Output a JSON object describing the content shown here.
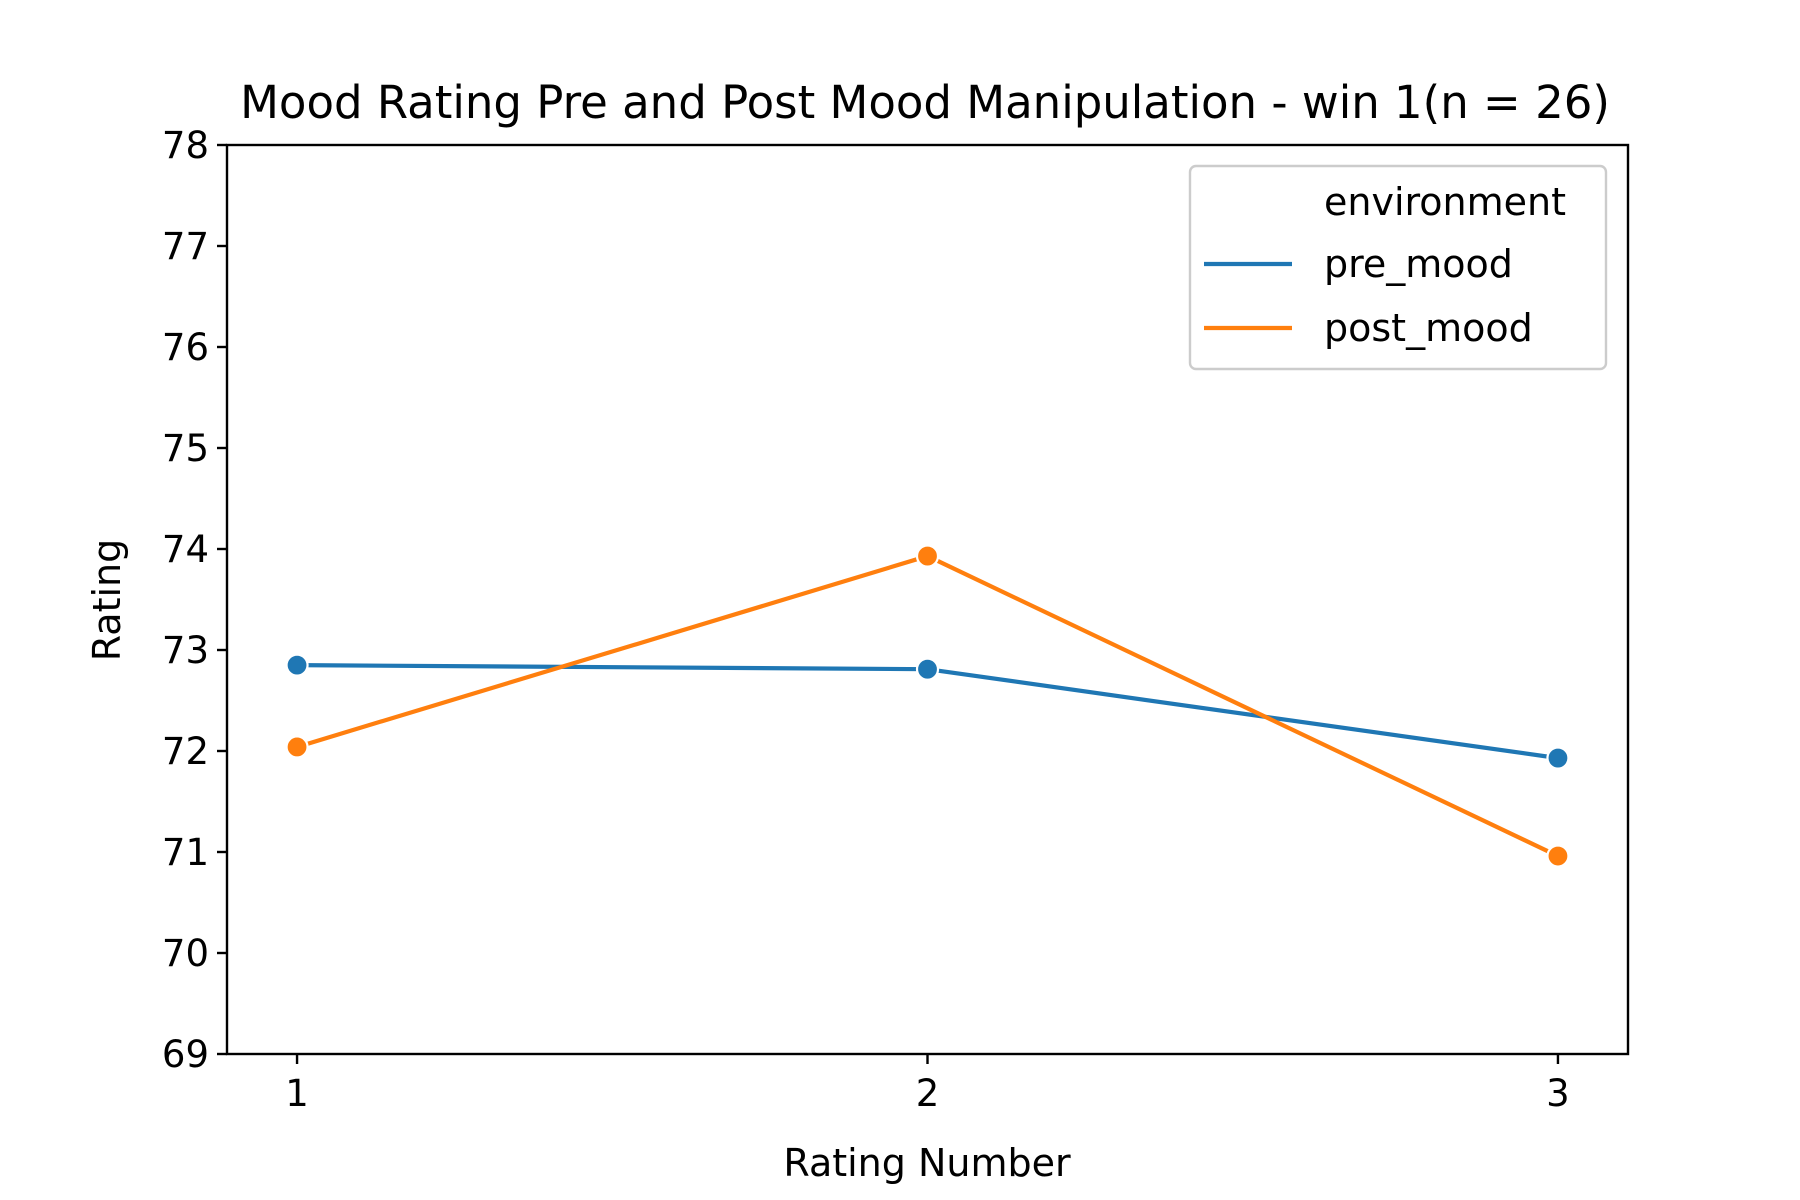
{
  "chart_data": {
    "type": "line",
    "title": "Mood Rating Pre and Post Mood Manipulation - win 1(n = 26)",
    "xlabel": "Rating Number",
    "ylabel": "Rating",
    "x": [
      1,
      2,
      3
    ],
    "xticks": [
      "1",
      "2",
      "3"
    ],
    "ylim": [
      69,
      78
    ],
    "yticks": [
      "69",
      "70",
      "71",
      "72",
      "73",
      "74",
      "75",
      "76",
      "77",
      "78"
    ],
    "grid": false,
    "legend": {
      "title": "environment",
      "placement": "top-right"
    },
    "series": [
      {
        "name": "pre_mood",
        "color": "#1f77b4",
        "values": [
          72.85,
          72.81,
          71.93
        ]
      },
      {
        "name": "post_mood",
        "color": "#ff7f0e",
        "values": [
          72.04,
          73.93,
          70.96
        ]
      }
    ]
  }
}
